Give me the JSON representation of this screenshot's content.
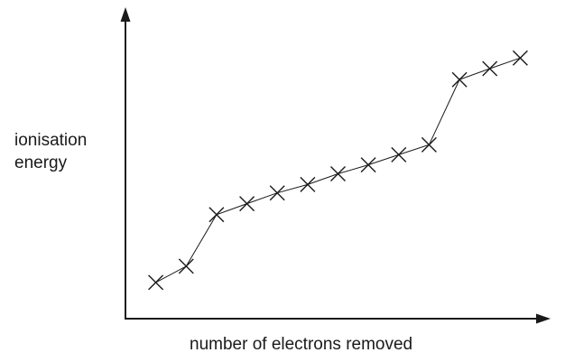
{
  "chart_data": {
    "type": "line",
    "marker": "x",
    "xlabel": "number of electrons removed",
    "ylabel_lines": [
      "ionisation",
      "energy"
    ],
    "x": [
      1,
      2,
      3,
      4,
      5,
      6,
      7,
      8,
      9,
      10,
      11,
      12,
      13
    ],
    "series": [
      {
        "values": [
          1.0,
          1.56,
          3.34,
          3.72,
          4.09,
          4.38,
          4.75,
          5.06,
          5.41,
          5.75,
          8.0,
          8.38,
          8.75
        ]
      }
    ],
    "xlim": [
      0,
      14
    ],
    "ylim": [
      -0.25,
      10.5
    ],
    "axis_ticks": false,
    "grid": false,
    "legend": false,
    "color": "#1a1a1a"
  }
}
